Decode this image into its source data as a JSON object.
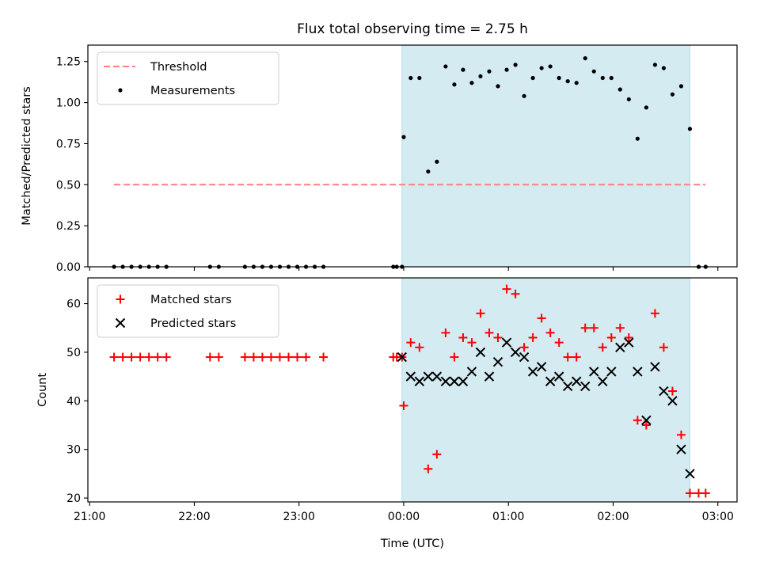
{
  "chart_data": [
    {
      "type": "scatter",
      "title": "Flux total observing time = 2.75 h",
      "xlabel": "",
      "ylabel": "Matched/Predicted stars",
      "xlim": [
        "20:59",
        "03:11"
      ],
      "ylim": [
        0,
        1.35
      ],
      "x_ticks": [
        "21:00",
        "22:00",
        "23:00",
        "00:00",
        "01:00",
        "02:00",
        "03:00"
      ],
      "y_ticks": [
        0.0,
        0.25,
        0.5,
        0.75,
        1.0,
        1.25
      ],
      "y_tick_labels": [
        "0.00",
        "0.25",
        "0.50",
        "0.75",
        "1.00",
        "1.25"
      ],
      "grid": false,
      "legend_position": "top-left",
      "shaded_interval": {
        "start": "23:59",
        "end": "02:44",
        "color": "#d4ebf1"
      },
      "series": [
        {
          "name": "Threshold",
          "style": "dashed-line",
          "color": "#ff7f7f",
          "x": [
            "21:14",
            "02:53"
          ],
          "y": [
            0.5,
            0.5
          ]
        },
        {
          "name": "Measurements",
          "style": "dot",
          "color": "#000000",
          "x": [
            "21:14",
            "21:19",
            "21:24",
            "21:29",
            "21:34",
            "21:39",
            "21:44",
            "22:09",
            "22:14",
            "22:29",
            "22:34",
            "22:39",
            "22:44",
            "22:49",
            "22:54",
            "22:59",
            "23:04",
            "23:09",
            "23:14",
            "23:54",
            "23:56",
            "23:59",
            "00:00",
            "00:04",
            "00:09",
            "00:14",
            "00:19",
            "00:24",
            "00:29",
            "00:34",
            "00:39",
            "00:44",
            "00:49",
            "00:54",
            "00:59",
            "01:04",
            "01:09",
            "01:14",
            "01:19",
            "01:24",
            "01:29",
            "01:34",
            "01:39",
            "01:44",
            "01:49",
            "01:54",
            "01:59",
            "02:04",
            "02:09",
            "02:14",
            "02:19",
            "02:24",
            "02:29",
            "02:34",
            "02:39",
            "02:44",
            "02:49",
            "02:53"
          ],
          "y": [
            0,
            0,
            0,
            0,
            0,
            0,
            0,
            0,
            0,
            0,
            0,
            0,
            0,
            0,
            0,
            0,
            0,
            0,
            0,
            0,
            0,
            0,
            0.79,
            1.15,
            1.15,
            0.58,
            0.64,
            1.22,
            1.11,
            1.2,
            1.12,
            1.16,
            1.19,
            1.1,
            1.2,
            1.23,
            1.04,
            1.15,
            1.21,
            1.22,
            1.15,
            1.13,
            1.12,
            1.27,
            1.19,
            1.15,
            1.15,
            1.08,
            1.02,
            0.78,
            0.97,
            1.23,
            1.21,
            1.05,
            1.1,
            0.84,
            0,
            0
          ]
        }
      ]
    },
    {
      "type": "scatter",
      "title": "",
      "xlabel": "Time (UTC)",
      "ylabel": "Count",
      "xlim": [
        "20:59",
        "03:11"
      ],
      "ylim": [
        19.2,
        65.3
      ],
      "x_ticks": [
        "21:00",
        "22:00",
        "23:00",
        "00:00",
        "01:00",
        "02:00",
        "03:00"
      ],
      "y_ticks": [
        20,
        30,
        40,
        50,
        60
      ],
      "y_tick_labels": [
        "20",
        "30",
        "40",
        "50",
        "60"
      ],
      "grid": false,
      "legend_position": "top-left",
      "shaded_interval": {
        "start": "23:59",
        "end": "02:44",
        "color": "#d4ebf1"
      },
      "series": [
        {
          "name": "Matched stars",
          "style": "plus",
          "color": "#ff0000",
          "x": [
            "21:14",
            "21:19",
            "21:24",
            "21:29",
            "21:34",
            "21:39",
            "21:44",
            "22:09",
            "22:14",
            "22:29",
            "22:34",
            "22:39",
            "22:44",
            "22:49",
            "22:54",
            "22:59",
            "23:04",
            "23:14",
            "23:54",
            "23:56",
            "23:59",
            "00:00",
            "00:04",
            "00:09",
            "00:14",
            "00:19",
            "00:24",
            "00:29",
            "00:34",
            "00:39",
            "00:44",
            "00:49",
            "00:54",
            "00:59",
            "01:04",
            "01:09",
            "01:14",
            "01:19",
            "01:24",
            "01:29",
            "01:34",
            "01:39",
            "01:44",
            "01:49",
            "01:54",
            "01:59",
            "02:04",
            "02:09",
            "02:14",
            "02:19",
            "02:24",
            "02:29",
            "02:34",
            "02:39",
            "02:44",
            "02:49",
            "02:53"
          ],
          "y": [
            49,
            49,
            49,
            49,
            49,
            49,
            49,
            49,
            49,
            49,
            49,
            49,
            49,
            49,
            49,
            49,
            49,
            49,
            49,
            49,
            49,
            39,
            52,
            51,
            26,
            29,
            54,
            49,
            53,
            52,
            58,
            54,
            53,
            63,
            62,
            51,
            53,
            57,
            54,
            52,
            49,
            49,
            55,
            55,
            51,
            53,
            55,
            53,
            36,
            35,
            58,
            51,
            42,
            33,
            21,
            21,
            21
          ]
        },
        {
          "name": "Predicted stars",
          "style": "x",
          "color": "#000000",
          "x": [
            "23:59",
            "00:04",
            "00:09",
            "00:14",
            "00:19",
            "00:24",
            "00:29",
            "00:34",
            "00:39",
            "00:44",
            "00:49",
            "00:54",
            "00:59",
            "01:04",
            "01:09",
            "01:14",
            "01:19",
            "01:24",
            "01:29",
            "01:34",
            "01:39",
            "01:44",
            "01:49",
            "01:54",
            "01:59",
            "02:04",
            "02:09",
            "02:14",
            "02:19",
            "02:24",
            "02:29",
            "02:34",
            "02:39",
            "02:44"
          ],
          "y": [
            49,
            45,
            44,
            45,
            45,
            44,
            44,
            44,
            46,
            50,
            45,
            48,
            52,
            50,
            49,
            46,
            47,
            44,
            45,
            43,
            44,
            43,
            46,
            44,
            46,
            51,
            52,
            46,
            36,
            47,
            42,
            40,
            30,
            25
          ]
        }
      ]
    }
  ]
}
